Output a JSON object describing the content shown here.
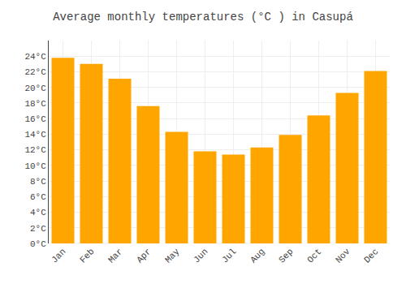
{
  "chart_data": {
    "type": "bar",
    "title": "Average monthly temperatures (°C ) in Casupá",
    "categories": [
      "Jan",
      "Feb",
      "Mar",
      "Apr",
      "May",
      "Jun",
      "Jul",
      "Aug",
      "Sep",
      "Oct",
      "Nov",
      "Dec"
    ],
    "values": [
      23.8,
      23.0,
      21.1,
      17.6,
      14.3,
      11.8,
      11.4,
      12.3,
      13.9,
      16.4,
      19.3,
      22.1
    ],
    "color": "#FFA500",
    "ylim": [
      0,
      26
    ],
    "yticks": [
      {
        "value": 0,
        "label": "0°C"
      },
      {
        "value": 2,
        "label": "2°C"
      },
      {
        "value": 4,
        "label": "4°C"
      },
      {
        "value": 6,
        "label": "6°C"
      },
      {
        "value": 8,
        "label": "8°C"
      },
      {
        "value": 10,
        "label": "10°C"
      },
      {
        "value": 12,
        "label": "12°C"
      },
      {
        "value": 14,
        "label": "14°C"
      },
      {
        "value": 16,
        "label": "16°C"
      },
      {
        "value": 18,
        "label": "18°C"
      },
      {
        "value": 20,
        "label": "20°C"
      },
      {
        "value": 22,
        "label": "22°C"
      },
      {
        "value": 24,
        "label": "24°C"
      }
    ],
    "grid": true
  }
}
